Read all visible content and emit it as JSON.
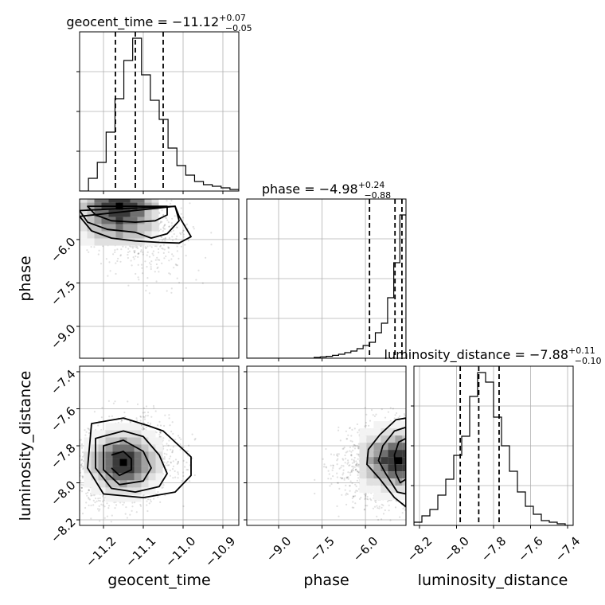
{
  "chart_data": {
    "type": "corner",
    "grid": true,
    "parameters": [
      {
        "name": "geocent_time",
        "xlabel": "geocent_time",
        "title_prefix": "geocent_time = ",
        "median": "−11.12",
        "plus": "+0.07",
        "minus": "−0.05",
        "quantiles": [
          -11.17,
          -11.12,
          -11.05
        ],
        "range": [
          -11.26,
          -10.86
        ],
        "ticks": [
          -11.2,
          -11.1,
          -11.0,
          -10.9
        ],
        "tick_labels": [
          "−11.2",
          "−11.1",
          "−11.0",
          "−10.9"
        ],
        "hist": [
          0,
          0.08,
          0.18,
          0.37,
          0.58,
          0.82,
          0.96,
          0.73,
          0.57,
          0.45,
          0.27,
          0.16,
          0.1,
          0.06,
          0.04,
          0.03,
          0.02,
          0.01
        ]
      },
      {
        "name": "phase",
        "xlabel": "phase",
        "ylabel": "phase",
        "title_prefix": "phase = ",
        "median": "−4.98",
        "plus": "+0.24",
        "minus": "−0.88",
        "quantiles": [
          -5.86,
          -4.98,
          -4.74
        ],
        "range": [
          -10.1,
          -4.6
        ],
        "ticks": [
          -9.0,
          -7.5,
          -6.0
        ],
        "tick_labels": [
          "−9.0",
          "−7.5",
          "−6.0"
        ],
        "hist": [
          0,
          0,
          0,
          0,
          0,
          0,
          0,
          0,
          0,
          0,
          0,
          0.005,
          0.008,
          0.012,
          0.018,
          0.025,
          0.035,
          0.045,
          0.06,
          0.08,
          0.1,
          0.16,
          0.22,
          0.38,
          0.6,
          0.9
        ]
      },
      {
        "name": "luminosity_distance",
        "xlabel": "luminosity_distance",
        "ylabel": "luminosity_distance",
        "title_prefix": "luminosity_distance = ",
        "median": "−7.88",
        "plus": "+0.11",
        "minus": "−0.10",
        "quantiles": [
          -7.98,
          -7.88,
          -7.77
        ],
        "range": [
          -8.23,
          -7.37
        ],
        "ticks": [
          -8.2,
          -8.0,
          -7.8,
          -7.6,
          -7.4
        ],
        "tick_labels": [
          "−8.2",
          "−8.0",
          "−7.8",
          "−7.6",
          "−7.4"
        ],
        "hist": [
          0.02,
          0.06,
          0.1,
          0.19,
          0.29,
          0.44,
          0.56,
          0.81,
          0.96,
          0.9,
          0.68,
          0.5,
          0.34,
          0.21,
          0.12,
          0.07,
          0.03,
          0.02,
          0.01,
          0
        ]
      }
    ],
    "pairs": [
      {
        "x": "geocent_time",
        "y": "phase",
        "center": [
          -11.16,
          -4.85
        ],
        "contours": [
          [
            [
              -11.24,
              -4.85
            ],
            [
              -11.22,
              -5.15
            ],
            [
              -11.18,
              -5.35
            ],
            [
              -11.12,
              -5.4
            ],
            [
              -11.07,
              -5.35
            ],
            [
              -11.04,
              -5.15
            ],
            [
              -11.04,
              -4.85
            ]
          ],
          [
            [
              -11.26,
              -5.0
            ],
            [
              -11.24,
              -5.4
            ],
            [
              -11.19,
              -5.65
            ],
            [
              -11.12,
              -5.75
            ],
            [
              -11.08,
              -5.95
            ],
            [
              -11.04,
              -5.8
            ],
            [
              -11.01,
              -5.35
            ],
            [
              -11.02,
              -4.85
            ]
          ],
          [
            [
              -11.26,
              -5.2
            ],
            [
              -11.23,
              -5.7
            ],
            [
              -11.18,
              -5.95
            ],
            [
              -11.12,
              -6.05
            ],
            [
              -11.06,
              -6.1
            ],
            [
              -11.01,
              -6.12
            ],
            [
              -10.98,
              -5.9
            ],
            [
              -11.01,
              -5.2
            ],
            [
              -11.02,
              -4.85
            ]
          ]
        ],
        "cloud": {
          "n": 1700,
          "sx": 0.07,
          "sy": 0.95,
          "rho": -0.5
        }
      },
      {
        "x": "geocent_time",
        "y": "luminosity_distance",
        "center": [
          -11.15,
          -7.89
        ],
        "contours": [
          [
            [
              -11.18,
              -7.85
            ],
            [
              -11.15,
              -7.83
            ],
            [
              -11.13,
              -7.87
            ],
            [
              -11.13,
              -7.93
            ],
            [
              -11.16,
              -7.96
            ],
            [
              -11.18,
              -7.92
            ]
          ],
          [
            [
              -11.2,
              -7.8
            ],
            [
              -11.15,
              -7.77
            ],
            [
              -11.1,
              -7.83
            ],
            [
              -11.08,
              -7.92
            ],
            [
              -11.1,
              -7.99
            ],
            [
              -11.16,
              -8.01
            ],
            [
              -11.2,
              -7.93
            ]
          ],
          [
            [
              -11.22,
              -7.76
            ],
            [
              -11.15,
              -7.72
            ],
            [
              -11.1,
              -7.75
            ],
            [
              -11.06,
              -7.85
            ],
            [
              -11.04,
              -7.95
            ],
            [
              -11.06,
              -8.02
            ],
            [
              -11.12,
              -8.05
            ],
            [
              -11.18,
              -8.03
            ],
            [
              -11.22,
              -7.92
            ]
          ],
          [
            [
              -11.23,
              -7.68
            ],
            [
              -11.15,
              -7.65
            ],
            [
              -11.09,
              -7.69
            ],
            [
              -11.05,
              -7.72
            ],
            [
              -11.01,
              -7.8
            ],
            [
              -10.98,
              -7.86
            ],
            [
              -10.98,
              -7.96
            ],
            [
              -11.02,
              -8.05
            ],
            [
              -11.1,
              -8.08
            ],
            [
              -11.2,
              -8.06
            ],
            [
              -11.24,
              -7.92
            ]
          ]
        ],
        "cloud": {
          "n": 2200,
          "sx": 0.06,
          "sy": 0.11,
          "rho": 0.2
        }
      },
      {
        "x": "phase",
        "y": "luminosity_distance",
        "center": [
          -4.85,
          -7.88
        ],
        "contours": [
          [
            [
              -4.6,
              -7.76
            ],
            [
              -4.85,
              -7.78
            ],
            [
              -5.0,
              -7.85
            ],
            [
              -4.95,
              -7.95
            ],
            [
              -4.8,
              -8.0
            ],
            [
              -4.6,
              -7.98
            ]
          ],
          [
            [
              -4.6,
              -7.7
            ],
            [
              -5.0,
              -7.72
            ],
            [
              -5.4,
              -7.8
            ],
            [
              -5.55,
              -7.88
            ],
            [
              -5.3,
              -7.95
            ],
            [
              -4.9,
              -8.05
            ],
            [
              -4.6,
              -8.06
            ]
          ],
          [
            [
              -4.6,
              -7.65
            ],
            [
              -4.95,
              -7.66
            ],
            [
              -5.5,
              -7.74
            ],
            [
              -5.9,
              -7.82
            ],
            [
              -5.95,
              -7.9
            ],
            [
              -5.5,
              -7.98
            ],
            [
              -5.0,
              -8.08
            ],
            [
              -4.6,
              -8.13
            ]
          ]
        ],
        "cloud": {
          "n": 2300,
          "sx": 0.95,
          "sy": 0.11,
          "rho": 0.15
        }
      }
    ]
  }
}
